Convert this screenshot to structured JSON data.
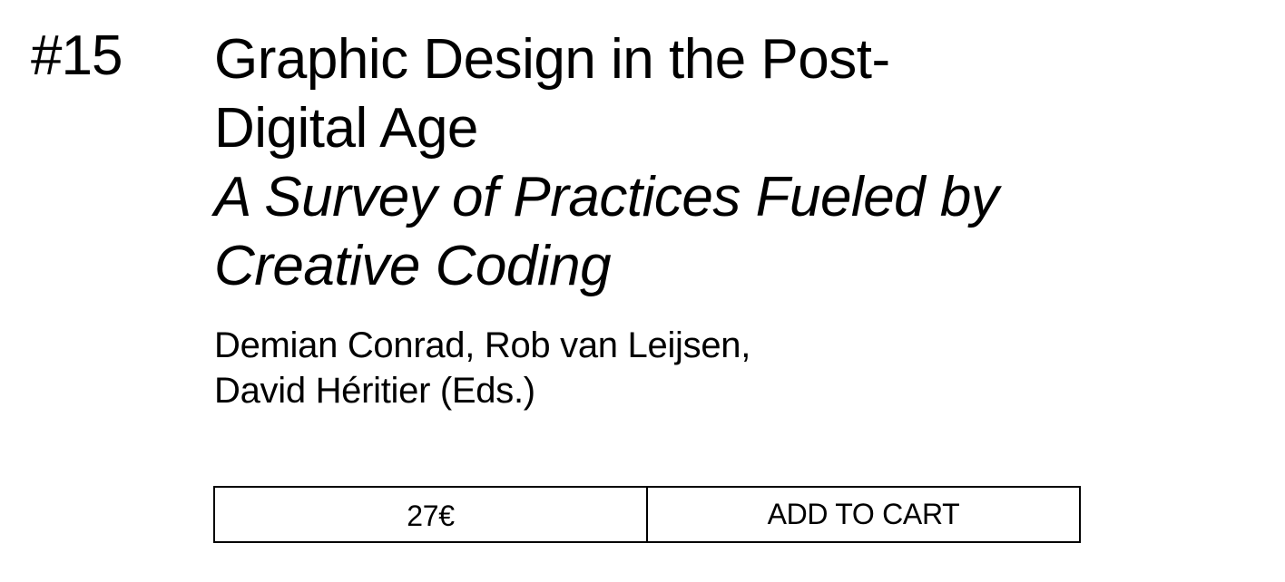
{
  "book": {
    "number": "#15",
    "title_line1": "Graphic Design in the Post-",
    "title_line2": "Digital Age",
    "subtitle_line1": "A Survey of Practices Fueled by",
    "subtitle_line2": "Creative Coding",
    "authors_line1": "Demian Conrad, Rob van Leijsen,",
    "authors_line2": "David Héritier (Eds.)"
  },
  "purchase": {
    "price": "27€",
    "add_to_cart_label": "ADD TO CART"
  }
}
